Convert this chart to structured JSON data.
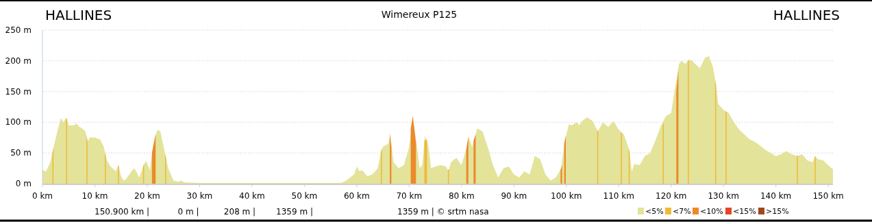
{
  "chart_data": {
    "type": "area",
    "title": "Wimereux P125",
    "annotations": [
      "HALLINES",
      "HALLINES",
      "150.900 km |",
      "0 m |",
      "208 m |",
      "1359 m |",
      "1359 m | © srtm nasa",
      "<15%",
      ">15%"
    ],
    "xlim": [
      0,
      150.9
    ],
    "xticks": [
      {
        "value": 0,
        "label": "0 km"
      },
      {
        "value": 10,
        "label": "10 km"
      },
      {
        "value": 20,
        "label": "20 km"
      },
      {
        "value": 30,
        "label": "30 km"
      },
      {
        "value": 40,
        "label": "40 km"
      },
      {
        "value": 50,
        "label": "50 km"
      },
      {
        "value": 60,
        "label": "60 km"
      },
      {
        "value": 70,
        "label": "70 km"
      },
      {
        "value": 80,
        "label": "80 km"
      },
      {
        "value": 90,
        "label": "90 km"
      },
      {
        "value": 100,
        "label": "100 km"
      },
      {
        "value": 110,
        "label": "110 km"
      },
      {
        "value": 120,
        "label": "120 km"
      },
      {
        "value": 130,
        "label": "130 km"
      },
      {
        "value": 140,
        "label": "140 km"
      },
      {
        "value": 150,
        "label": "150 km"
      }
    ],
    "ylim": [
      0,
      250
    ],
    "yticks": [
      {
        "value": 0,
        "label": "0 m"
      },
      {
        "value": 50,
        "label": "50 m"
      },
      {
        "value": 100,
        "label": "100 m"
      },
      {
        "value": 150,
        "label": "150 m"
      },
      {
        "value": 200,
        "label": "200 m"
      },
      {
        "value": 250,
        "label": "250 m"
      }
    ],
    "grid": "y",
    "legend": "bottom",
    "series": [
      {
        "name": "<5%",
        "color": "#e3e39a",
        "x": [
          0,
          0.7,
          1.5,
          2,
          2.7,
          3.5,
          4,
          4.6,
          5,
          6,
          6.5,
          7,
          7.5,
          8.2,
          8.6,
          9,
          10,
          11,
          11.7,
          12.3,
          13,
          14,
          14.5,
          15,
          15.5,
          16,
          17,
          17.5,
          18,
          18.5,
          19.3,
          19.8,
          20.5,
          21,
          21.5,
          22,
          22.5,
          23.5,
          24,
          25,
          26,
          26.5,
          27,
          30,
          40,
          50,
          57,
          58,
          59.5,
          60,
          60.5,
          61,
          62,
          63,
          64,
          64.7,
          65,
          66,
          66.4,
          67,
          68,
          69,
          70,
          70.7,
          71.5,
          72,
          72.5,
          73,
          73.6,
          74.2,
          75,
          76,
          77,
          77.5,
          78,
          79,
          80,
          81,
          81.3,
          82,
          82.5,
          83,
          84,
          85,
          86,
          87,
          88,
          89,
          90,
          91,
          92,
          93,
          94,
          95,
          96,
          97,
          98,
          99,
          99.7,
          100,
          100.5,
          101,
          102,
          102.5,
          103,
          104,
          105,
          106,
          107,
          108,
          109,
          110,
          111,
          112,
          112.5,
          113,
          114,
          115,
          116,
          117,
          118,
          119,
          120,
          121.5,
          122,
          122.7,
          123.5,
          124,
          125.5,
          126.5,
          127.2,
          128,
          128.5,
          129,
          130,
          131,
          132,
          133,
          134,
          135,
          136,
          137,
          138,
          139,
          140,
          141,
          142,
          143,
          144,
          145,
          146,
          147,
          147.5,
          148,
          149,
          150,
          150.6,
          150.9
        ],
        "values": [
          22,
          20,
          35,
          55,
          80,
          107,
          100,
          108,
          95,
          95,
          98,
          93,
          90,
          85,
          68,
          75,
          75,
          72,
          60,
          38,
          28,
          20,
          30,
          12,
          5,
          8,
          20,
          25,
          18,
          10,
          30,
          37,
          22,
          55,
          78,
          88,
          85,
          45,
          25,
          5,
          3,
          5,
          2,
          1,
          1,
          1,
          1,
          5,
          15,
          28,
          20,
          22,
          12,
          15,
          25,
          55,
          60,
          65,
          82,
          35,
          25,
          30,
          60,
          110,
          60,
          25,
          30,
          78,
          65,
          25,
          28,
          30,
          28,
          20,
          35,
          42,
          30,
          60,
          77,
          60,
          75,
          90,
          85,
          60,
          30,
          10,
          25,
          28,
          15,
          10,
          20,
          15,
          45,
          40,
          15,
          5,
          10,
          25,
          70,
          80,
          97,
          95,
          100,
          95,
          102,
          108,
          102,
          85,
          100,
          92,
          102,
          88,
          80,
          55,
          20,
          32,
          30,
          45,
          50,
          70,
          93,
          110,
          115,
          195,
          200,
          195,
          202,
          200,
          188,
          205,
          208,
          190,
          165,
          130,
          120,
          115,
          100,
          88,
          80,
          72,
          68,
          62,
          55,
          50,
          45,
          48,
          53,
          48,
          45,
          48,
          38,
          35,
          45,
          40,
          38,
          30,
          25,
          24
        ]
      },
      {
        "name": "<7%",
        "color": "#f0b93a",
        "x": [
          1.9,
          2.1,
          2.2,
          4.5,
          4.7,
          4.8,
          8.4,
          8.6,
          8.7,
          11.9,
          12.1,
          12.2,
          14.4,
          14.6,
          14.7,
          19.2,
          19.4,
          19.5,
          23.4,
          23.6,
          23.7,
          64.6,
          64.8,
          64.9,
          72.9,
          73.4,
          73.5,
          77.4,
          77.6,
          77.7,
          105.9,
          106.1,
          106.2,
          110.4,
          110.6,
          110.7,
          111.9,
          112.1,
          112.2,
          118.4,
          118.6,
          118.7,
          123.2,
          123.4,
          123.5,
          128.4,
          128.6,
          128.7,
          130.4,
          130.6,
          130.7,
          144,
          144.2,
          144.3,
          147.4,
          147.6
        ],
        "values": [
          50,
          58,
          null,
          105,
          106,
          null,
          78,
          70,
          null,
          50,
          45,
          null,
          28,
          30,
          null,
          28,
          32,
          null,
          48,
          42,
          null,
          52,
          56,
          null,
          70,
          72,
          null,
          22,
          24,
          null,
          88,
          84,
          null,
          84,
          82,
          null,
          57,
          52,
          null,
          95,
          100,
          null,
          200,
          202,
          null,
          168,
          160,
          null,
          118,
          117,
          null,
          45,
          46,
          null,
          44,
          44
        ]
      },
      {
        "name": "<10%",
        "color": "#eb8a2a",
        "x": [
          20.9,
          21.6,
          21.7,
          66.3,
          66.6,
          66.7,
          70.3,
          70.7,
          71.3,
          71.4,
          80.9,
          81.3,
          81.4,
          82.3,
          82.7,
          82.8,
          98.9,
          99.2,
          99.3,
          99.6,
          99.9,
          100,
          121,
          121.4
        ],
        "values": [
          50,
          80,
          null,
          80,
          60,
          null,
          90,
          110,
          65,
          null,
          55,
          77,
          null,
          70,
          80,
          null,
          22,
          30,
          null,
          65,
          78,
          null,
          150,
          185
        ]
      }
    ]
  }
}
